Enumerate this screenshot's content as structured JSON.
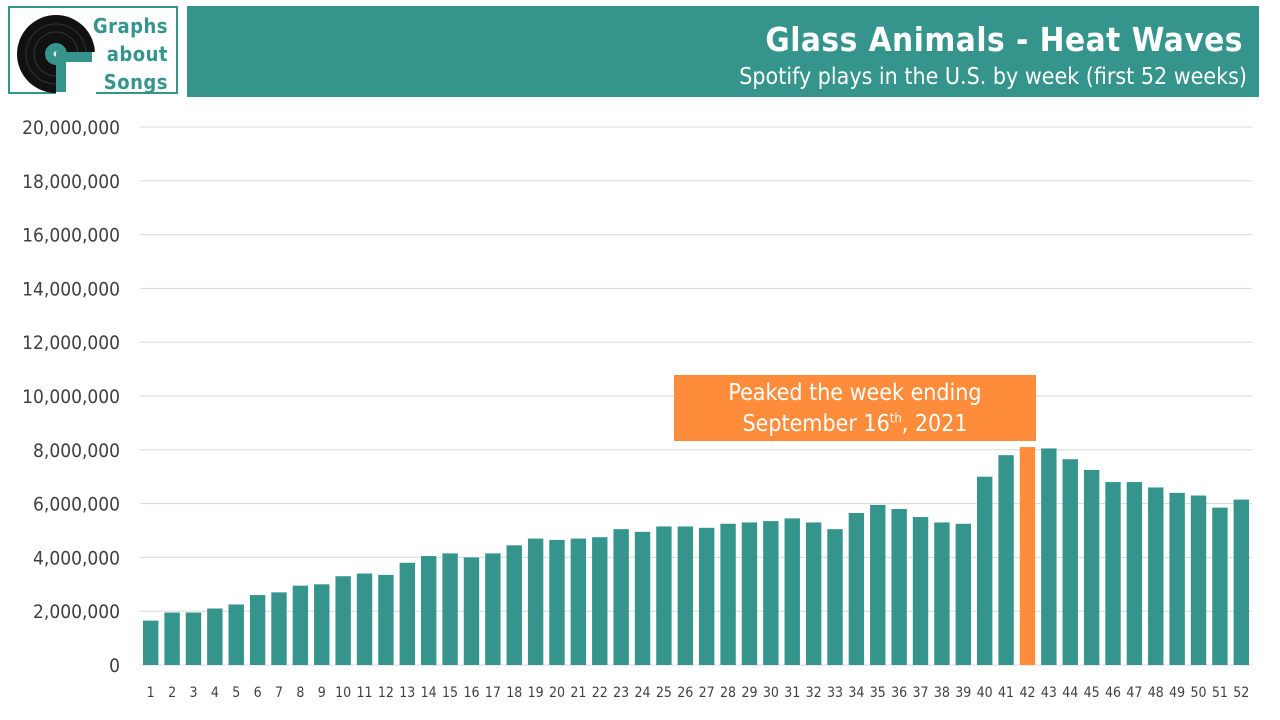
{
  "logo": {
    "line1": "Graphs",
    "line2": "about",
    "line3": "Songs"
  },
  "header": {
    "title": "Glass Animals - Heat Waves",
    "subtitle": "Spotify plays in the U.S. by week (first 52 weeks)"
  },
  "callout": {
    "line1": "Peaked the week ending",
    "line2_pre": "September 16",
    "line2_sup": "th",
    "line2_post": ", 2021"
  },
  "colors": {
    "bar": "#35958c",
    "highlight": "#ff8c3a",
    "grid": "#d9d9d9",
    "text": "#404040"
  },
  "chart_data": {
    "type": "bar",
    "title": "Glass Animals - Heat Waves",
    "subtitle": "Spotify plays in the U.S. by week (first 52 weeks)",
    "xlabel": "",
    "ylabel": "",
    "ylim": [
      0,
      20000000
    ],
    "yticks": [
      0,
      2000000,
      4000000,
      6000000,
      8000000,
      10000000,
      12000000,
      14000000,
      16000000,
      18000000,
      20000000
    ],
    "ytick_labels": [
      "0",
      "2,000,000",
      "4,000,000",
      "6,000,000",
      "8,000,000",
      "10,000,000",
      "12,000,000",
      "14,000,000",
      "16,000,000",
      "18,000,000",
      "20,000,000"
    ],
    "grid": true,
    "highlight_category": "42",
    "categories": [
      "1",
      "2",
      "3",
      "4",
      "5",
      "6",
      "7",
      "8",
      "9",
      "10",
      "11",
      "12",
      "13",
      "14",
      "15",
      "16",
      "17",
      "18",
      "19",
      "20",
      "21",
      "22",
      "23",
      "24",
      "25",
      "26",
      "27",
      "28",
      "29",
      "30",
      "31",
      "32",
      "33",
      "34",
      "35",
      "36",
      "37",
      "38",
      "39",
      "40",
      "41",
      "42",
      "43",
      "44",
      "45",
      "46",
      "47",
      "48",
      "49",
      "50",
      "51",
      "52"
    ],
    "values": [
      1650000,
      1950000,
      1950000,
      2100000,
      2250000,
      2600000,
      2700000,
      2950000,
      3000000,
      3300000,
      3400000,
      3350000,
      3800000,
      4050000,
      4150000,
      4000000,
      4150000,
      4450000,
      4700000,
      4650000,
      4700000,
      4750000,
      5050000,
      4950000,
      5150000,
      5150000,
      5100000,
      5250000,
      5300000,
      5350000,
      5450000,
      5300000,
      5050000,
      5650000,
      5950000,
      5800000,
      5500000,
      5300000,
      5250000,
      7000000,
      7800000,
      8100000,
      8050000,
      7650000,
      7250000,
      6800000,
      6800000,
      6600000,
      6400000,
      6300000,
      5850000,
      6150000
    ]
  }
}
